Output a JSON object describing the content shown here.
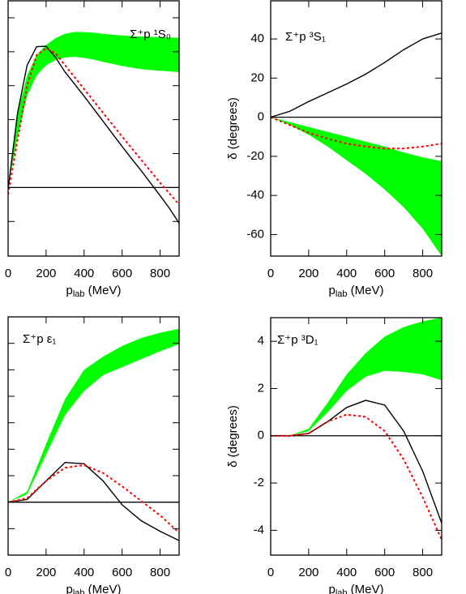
{
  "chart_data": [
    {
      "type": "line",
      "title": "Σ⁺p ¹S₀",
      "xlabel": [
        "p",
        "lab",
        " (MeV)"
      ],
      "xlim": [
        0,
        900
      ],
      "xticks": [
        0,
        200,
        400,
        600,
        800
      ],
      "ylim": [
        -20.2,
        55
      ],
      "yticks": [
        -10,
        0,
        10,
        20,
        30,
        40,
        50
      ],
      "ytick_labels": false,
      "zero_line": true,
      "x": [
        0,
        50,
        100,
        150,
        200,
        250,
        300,
        350,
        400,
        450,
        500,
        550,
        600,
        650,
        700,
        750,
        800,
        850,
        900
      ],
      "series": [
        {
          "style": "band",
          "color": "#00ff00",
          "lower": [
            0,
            15,
            27,
            33,
            36,
            37.6,
            38.3,
            38.5,
            38.2,
            37.7,
            37,
            36.4,
            35.8,
            35.3,
            34.9,
            34.6,
            34.4,
            34.2,
            34
          ],
          "upper": [
            0,
            22,
            33,
            39,
            42,
            44,
            45.3,
            45.8,
            45.8,
            45.6,
            45.3,
            45,
            44.8,
            44.6,
            44.5,
            44.4,
            44.3,
            44.2,
            44.1
          ]
        },
        {
          "color": "#000000",
          "dash": false,
          "values": [
            -0.5,
            22,
            36,
            41.5,
            41.6,
            38.3,
            34,
            30.5,
            26.9,
            23.2,
            19.5,
            15.8,
            12.1,
            8.5,
            5,
            1.3,
            -2.4,
            -6.2,
            -10.5
          ]
        },
        {
          "color": "#ff0000",
          "dash": true,
          "values": [
            -2,
            14,
            30,
            39,
            41,
            39.5,
            36,
            32.5,
            29,
            25.5,
            22,
            18.5,
            15,
            11.6,
            8.2,
            4.8,
            1.4,
            -1.8,
            -5
          ]
        }
      ]
    },
    {
      "type": "line",
      "title": "Σ⁺p ³S₁",
      "xlabel": [
        "p",
        "lab",
        " (MeV)"
      ],
      "ylabel": "δ (degrees)",
      "xlim": [
        0,
        900
      ],
      "xticks": [
        0,
        200,
        400,
        600,
        800
      ],
      "ylim": [
        -71,
        59.5
      ],
      "yticks": [
        -60,
        -40,
        -20,
        0,
        20,
        40
      ],
      "ytick_labels": true,
      "zero_line": true,
      "x": [
        0,
        100,
        200,
        300,
        400,
        500,
        600,
        700,
        800,
        900
      ],
      "series": [
        {
          "style": "band",
          "color": "#00ff00",
          "lower": [
            0,
            -4,
            -9,
            -15,
            -22,
            -29,
            -37,
            -46,
            -57,
            -71
          ],
          "upper": [
            0,
            -2.5,
            -5,
            -7.5,
            -10,
            -12.5,
            -15,
            -18,
            -20.5,
            -22.5
          ]
        },
        {
          "color": "#000000",
          "dash": false,
          "values": [
            0,
            3,
            8,
            12.5,
            17,
            22,
            28,
            34.5,
            40,
            43
          ]
        },
        {
          "color": "#ff0000",
          "dash": true,
          "values": [
            0,
            -4,
            -8,
            -11,
            -13.5,
            -15,
            -16,
            -16,
            -15,
            -13.5
          ]
        }
      ]
    },
    {
      "type": "line",
      "title": "Σ⁺p ε₁",
      "xlabel": [
        "p",
        "lab",
        " (MeV)"
      ],
      "xlim": [
        0,
        900
      ],
      "xticks": [
        0,
        200,
        400,
        600,
        800
      ],
      "ylim": [
        -2,
        7
      ],
      "yticks": [
        -1,
        0,
        1,
        2,
        3,
        4,
        5,
        6
      ],
      "ytick_labels": false,
      "zero_line": true,
      "x": [
        0,
        100,
        200,
        300,
        400,
        500,
        600,
        700,
        800,
        900
      ],
      "series": [
        {
          "style": "band",
          "color": "#00ff00",
          "lower": [
            0,
            0.3,
            1.8,
            3.3,
            4.2,
            4.8,
            5.1,
            5.4,
            5.7,
            5.97
          ],
          "upper": [
            0,
            0.4,
            2.2,
            3.9,
            5,
            5.5,
            5.9,
            6.2,
            6.4,
            6.55
          ]
        },
        {
          "color": "#000000",
          "dash": false,
          "values": [
            0,
            0.1,
            0.8,
            1.5,
            1.45,
            0.8,
            -0.1,
            -0.7,
            -1.1,
            -1.45
          ]
        },
        {
          "color": "#ff0000",
          "dash": true,
          "values": [
            0,
            0.15,
            0.8,
            1.3,
            1.4,
            1.1,
            0.6,
            0.05,
            -0.5,
            -1.15
          ]
        }
      ]
    },
    {
      "type": "line",
      "title": "Σ⁺p ³D₁",
      "xlabel": [
        "p",
        "lab",
        " (MeV)"
      ],
      "ylabel": "δ (degrees)",
      "xlim": [
        0,
        900
      ],
      "xticks": [
        0,
        200,
        400,
        600,
        800
      ],
      "ylim": [
        -5.05,
        5
      ],
      "yticks": [
        -4,
        -2,
        0,
        2,
        4
      ],
      "ytick_labels": true,
      "zero_line": true,
      "x": [
        0,
        100,
        200,
        300,
        400,
        500,
        600,
        700,
        800,
        900
      ],
      "series": [
        {
          "style": "band",
          "color": "#00ff00",
          "lower": [
            0,
            0,
            0.2,
            1,
            1.9,
            2.5,
            2.75,
            2.7,
            2.6,
            2.35
          ],
          "upper": [
            0,
            0,
            0.3,
            1.4,
            2.6,
            3.5,
            4.2,
            4.6,
            4.85,
            5
          ]
        },
        {
          "color": "#000000",
          "dash": false,
          "values": [
            0,
            0,
            0.1,
            0.6,
            1.2,
            1.5,
            1.3,
            0.2,
            -1.5,
            -3.7
          ]
        },
        {
          "color": "#ff0000",
          "dash": true,
          "values": [
            0,
            0,
            0.1,
            0.6,
            0.9,
            0.8,
            0.2,
            -1,
            -2.6,
            -4.4
          ]
        }
      ]
    }
  ]
}
